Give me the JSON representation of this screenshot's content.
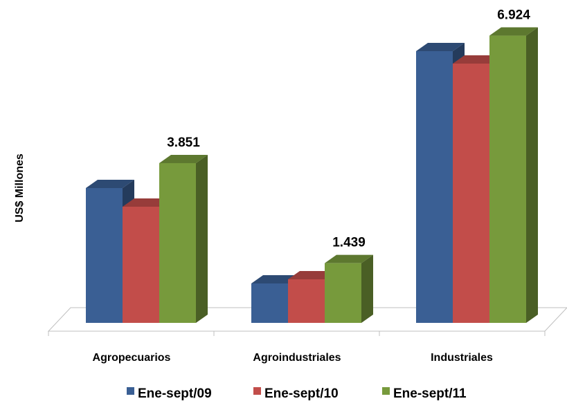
{
  "chart_data": {
    "type": "bar",
    "ylabel": "US$ Millones",
    "categories": [
      "Agropecuarios",
      "Agroindustriales",
      "Industriales"
    ],
    "series": [
      {
        "name": "Ene-sept/09",
        "color": "#3A5F94",
        "values": [
          3250,
          950,
          6550
        ]
      },
      {
        "name": "Ene-sept/10",
        "color": "#C24D4A",
        "values": [
          2800,
          1050,
          6250
        ]
      },
      {
        "name": "Ene-sept/11",
        "color": "#779A3C",
        "values": [
          3851,
          1439,
          6924
        ]
      }
    ],
    "data_labels": [
      {
        "category": "Agropecuarios",
        "series": "Ene-sept/11",
        "text": "3.851"
      },
      {
        "category": "Agroindustriales",
        "series": "Ene-sept/11",
        "text": "1.439"
      },
      {
        "category": "Industriales",
        "series": "Ene-sept/11",
        "text": "6.924"
      }
    ],
    "ylim": [
      0,
      7000
    ],
    "grid": false,
    "legend_position": "bottom",
    "three_d": true
  }
}
